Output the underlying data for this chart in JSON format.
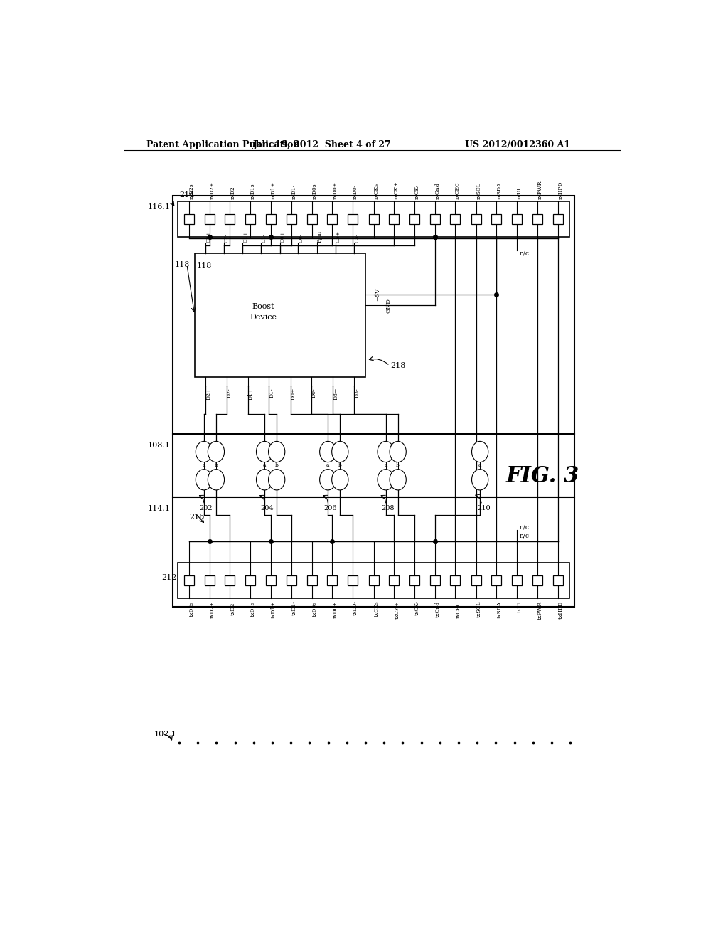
{
  "title_left": "Patent Application Publication",
  "title_center": "Jan. 19, 2012  Sheet 4 of 27",
  "title_right": "US 2012/0012360 A1",
  "fig_label": "FIG. 3",
  "bg_color": "#ffffff",
  "rx_labels": [
    "rxD2s",
    "rxD2+",
    "rxD2-",
    "rxD1s",
    "rxD1+",
    "rxD1-",
    "rxD0s",
    "rxD0+",
    "rxD0-",
    "rxCKs",
    "rxCK+",
    "rxCK-",
    "rxGnd",
    "rxCEC",
    "rxSCL",
    "rxSDA",
    "rxUt",
    "rxPWR",
    "rxHPD"
  ],
  "tx_labels": [
    "txD2s",
    "txD2+",
    "txD2-",
    "txD1s",
    "txD1+",
    "txD1-",
    "txD0s",
    "txD0+",
    "txD0-",
    "txCKs",
    "txCK+",
    "txCK-",
    "txGnd",
    "txCEC",
    "txSCL",
    "txSDA",
    "txUt",
    "txPWR",
    "txHPD"
  ],
  "boost_top_labels": [
    "C2+",
    "C2-",
    "C1+",
    "C1-",
    "C0+",
    "C0-",
    "Pgm",
    "C3+",
    "C3-"
  ],
  "boost_bot_labels": [
    "D2+",
    "D2-",
    "D1+",
    "D1-",
    "D0+",
    "D0-",
    "D3+",
    "D3-"
  ],
  "boost_right_labels": [
    "+5V",
    "GND"
  ],
  "n_pins": 19
}
